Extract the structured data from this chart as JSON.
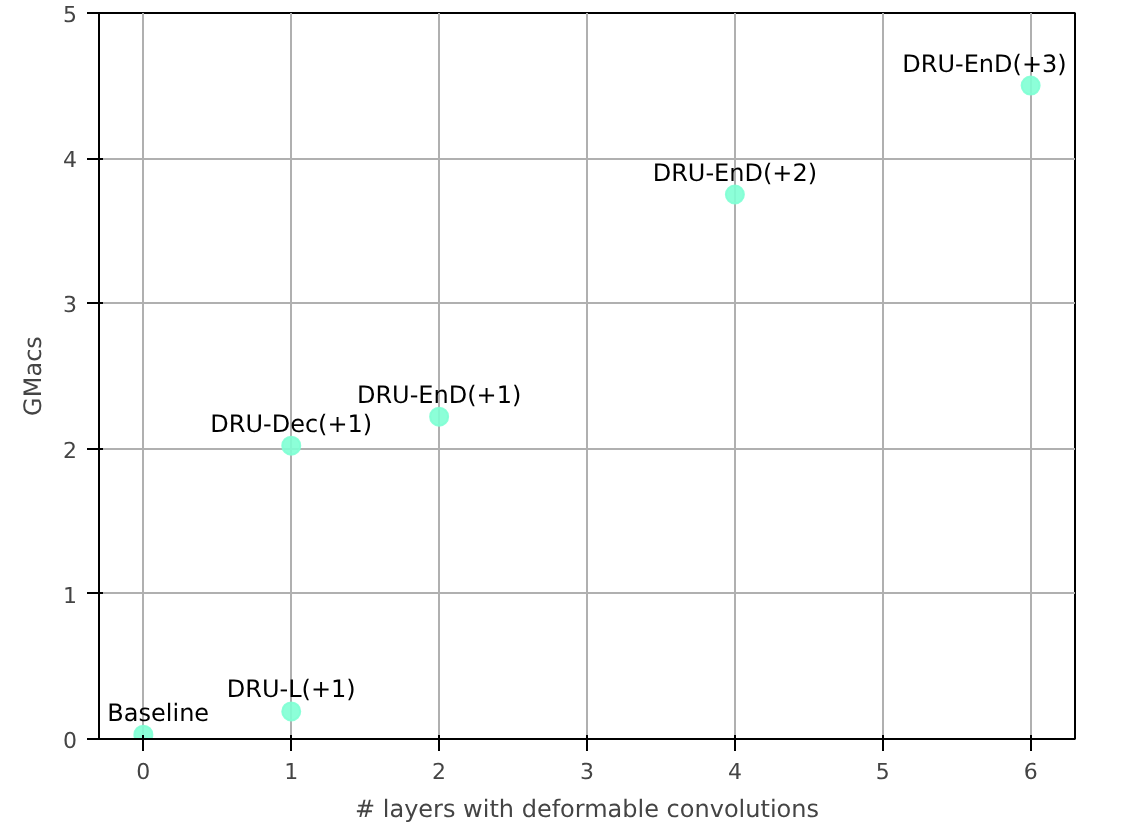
{
  "chart_data": {
    "type": "scatter",
    "xlabel": "# layers with deformable convolutions",
    "ylabel": "GMacs",
    "x": [
      0,
      1,
      1,
      2,
      4,
      6
    ],
    "series": [
      {
        "color": "#7fffd4",
        "values": [
          0.03,
          0.19,
          2.02,
          2.22,
          3.75,
          4.5
        ]
      }
    ],
    "annotations": [
      {
        "text": "Baseline",
        "x": 0,
        "y": 0.03
      },
      {
        "text": "DRU-L(+1)",
        "x": 1,
        "y": 0.19
      },
      {
        "text": "DRU-Dec(+1)",
        "x": 1,
        "y": 2.02
      },
      {
        "text": "DRU-EnD(+1)",
        "x": 2,
        "y": 2.22
      },
      {
        "text": "DRU-EnD(+2)",
        "x": 4,
        "y": 3.75
      },
      {
        "text": "DRU-EnD(+3)",
        "x": 6,
        "y": 4.5
      }
    ],
    "xlim": [
      -0.3,
      6.3
    ],
    "ylim": [
      0,
      5
    ],
    "xticks": [
      0,
      1,
      2,
      3,
      4,
      5,
      6
    ],
    "yticks": [
      0,
      1,
      2,
      3,
      4,
      5
    ],
    "grid": true,
    "marker": "circle"
  }
}
